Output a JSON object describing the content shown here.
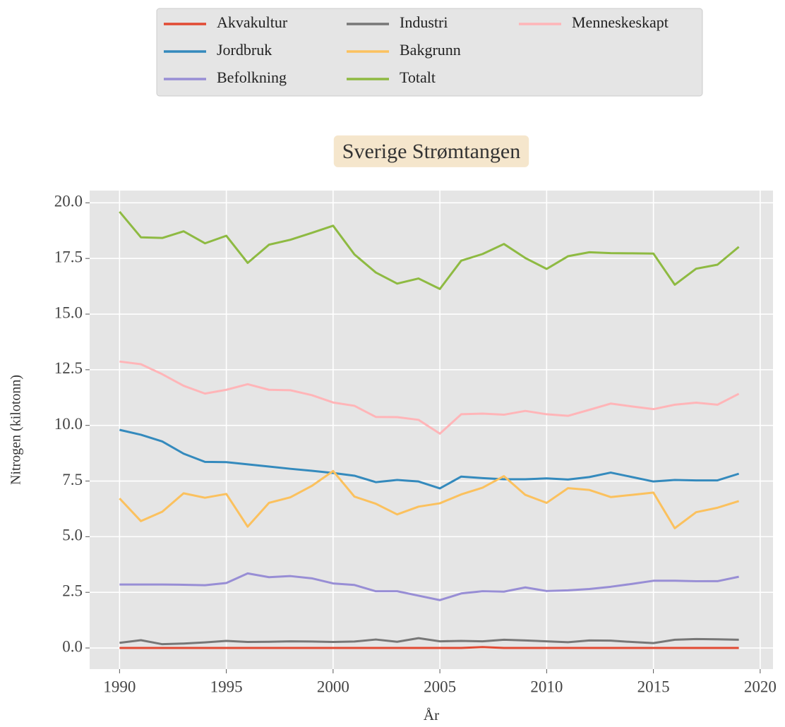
{
  "chart_data": {
    "type": "line",
    "title": "Sverige Strømtangen",
    "x_label": "År",
    "y_label": "Nitrogen (kilotonn)",
    "x": [
      1990,
      1991,
      1992,
      1993,
      1994,
      1995,
      1996,
      1997,
      1998,
      1999,
      2000,
      2001,
      2002,
      2003,
      2004,
      2005,
      2006,
      2007,
      2008,
      2009,
      2010,
      2011,
      2012,
      2013,
      2014,
      2015,
      2016,
      2017,
      2018,
      2019
    ],
    "series": [
      {
        "name": "Akvakultur",
        "color": "#E24A33",
        "values": [
          0,
          0,
          0,
          0,
          0,
          0,
          0,
          0,
          0,
          0,
          0,
          0,
          0,
          0,
          0,
          0,
          0,
          0.04,
          0,
          0,
          0,
          0,
          0,
          0,
          0,
          0,
          0,
          0,
          0,
          0
        ]
      },
      {
        "name": "Jordbruk",
        "color": "#348ABD",
        "values": [
          9.8,
          9.58,
          9.28,
          8.73,
          8.36,
          8.35,
          8.25,
          8.15,
          8.05,
          7.96,
          7.86,
          7.74,
          7.45,
          7.55,
          7.48,
          7.17,
          7.7,
          7.63,
          7.58,
          7.58,
          7.62,
          7.57,
          7.68,
          7.88,
          7.68,
          7.48,
          7.55,
          7.53,
          7.53,
          7.83
        ]
      },
      {
        "name": "Befolkning",
        "color": "#988ED5",
        "values": [
          2.85,
          2.85,
          2.85,
          2.84,
          2.82,
          2.92,
          3.35,
          3.18,
          3.23,
          3.13,
          2.9,
          2.83,
          2.55,
          2.55,
          2.35,
          2.15,
          2.45,
          2.55,
          2.53,
          2.72,
          2.56,
          2.59,
          2.65,
          2.75,
          2.88,
          3.02,
          3.02,
          3.0,
          3.0,
          3.2
        ]
      },
      {
        "name": "Industri",
        "color": "#777777",
        "values": [
          0.23,
          0.35,
          0.17,
          0.2,
          0.25,
          0.32,
          0.27,
          0.28,
          0.3,
          0.29,
          0.27,
          0.29,
          0.38,
          0.28,
          0.44,
          0.3,
          0.32,
          0.3,
          0.37,
          0.34,
          0.3,
          0.26,
          0.34,
          0.33,
          0.27,
          0.22,
          0.37,
          0.4,
          0.39,
          0.37
        ]
      },
      {
        "name": "Bakgrunn",
        "color": "#FBC15E",
        "values": [
          6.72,
          5.7,
          6.12,
          6.95,
          6.75,
          6.92,
          5.45,
          6.52,
          6.77,
          7.28,
          7.95,
          6.8,
          6.48,
          6.0,
          6.35,
          6.5,
          6.9,
          7.2,
          7.72,
          6.88,
          6.52,
          7.18,
          7.1,
          6.78,
          6.88,
          6.98,
          5.38,
          6.1,
          6.3,
          6.6
        ]
      },
      {
        "name": "Totalt",
        "color": "#8EBA42",
        "values": [
          19.6,
          18.45,
          18.42,
          18.72,
          18.18,
          18.52,
          17.3,
          18.12,
          18.34,
          18.65,
          18.97,
          17.68,
          16.87,
          16.37,
          16.6,
          16.13,
          17.4,
          17.7,
          18.15,
          17.52,
          17.03,
          17.6,
          17.78,
          17.74,
          17.73,
          17.72,
          16.32,
          17.04,
          17.22,
          18.02
        ]
      },
      {
        "name": "Menneskeskapt",
        "color": "#FFB5B8",
        "values": [
          12.87,
          12.75,
          12.3,
          11.78,
          11.43,
          11.6,
          11.85,
          11.6,
          11.58,
          11.36,
          11.03,
          10.88,
          10.38,
          10.37,
          10.25,
          9.63,
          10.5,
          10.53,
          10.48,
          10.65,
          10.5,
          10.43,
          10.7,
          10.98,
          10.85,
          10.73,
          10.93,
          11.02,
          10.93,
          11.42
        ]
      }
    ],
    "xlim": [
      1988.6,
      2020.6
    ],
    "ylim": [
      -0.95,
      20.55
    ],
    "xticks": [
      1990,
      1995,
      2000,
      2005,
      2010,
      2015,
      2020
    ],
    "yticks": [
      {
        "value": 0,
        "label": "0.0"
      },
      2.5,
      {
        "value": 5,
        "label": "5.0"
      },
      7.5,
      {
        "value": 10,
        "label": "10.0"
      },
      12.5,
      {
        "value": 15,
        "label": "15.0"
      },
      17.5,
      {
        "value": 20,
        "label": "20.0"
      }
    ],
    "grid": true,
    "legend": "above"
  }
}
